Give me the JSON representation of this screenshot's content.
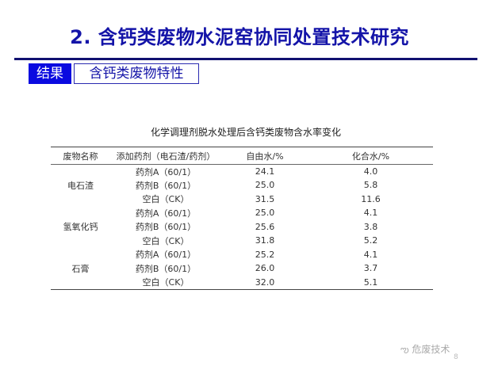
{
  "header": {
    "title": "2. 含钙类废物水泥窑协同处置技术研究",
    "badge": "结果",
    "subtitle": "含钙类废物特性"
  },
  "table": {
    "caption": "化学调理剂脱水处理后含钙类废物含水率变化",
    "columns": [
      "废物名称",
      "添加药剂（电石渣/药剂）",
      "自由水/%",
      "化合水/%"
    ],
    "groups": [
      {
        "name": "电石渣",
        "rows": [
          [
            "药剂A（60/1）",
            "24.1",
            "4.0"
          ],
          [
            "药剂B（60/1）",
            "25.0",
            "5.8"
          ],
          [
            "空白（CK）",
            "31.5",
            "11.6"
          ]
        ]
      },
      {
        "name": "氢氧化钙",
        "rows": [
          [
            "药剂A（60/1）",
            "25.0",
            "4.1"
          ],
          [
            "药剂B（60/1）",
            "25.6",
            "3.8"
          ],
          [
            "空白（CK）",
            "31.8",
            "5.2"
          ]
        ]
      },
      {
        "name": "石膏",
        "rows": [
          [
            "药剂A（60/1）",
            "25.2",
            "4.1"
          ],
          [
            "药剂B（60/1）",
            "26.0",
            "3.7"
          ],
          [
            "空白（CK）",
            "32.0",
            "5.1"
          ]
        ]
      }
    ]
  },
  "watermark": {
    "icon": "wechat-icon",
    "text": "危废技术"
  },
  "page_number": "8"
}
